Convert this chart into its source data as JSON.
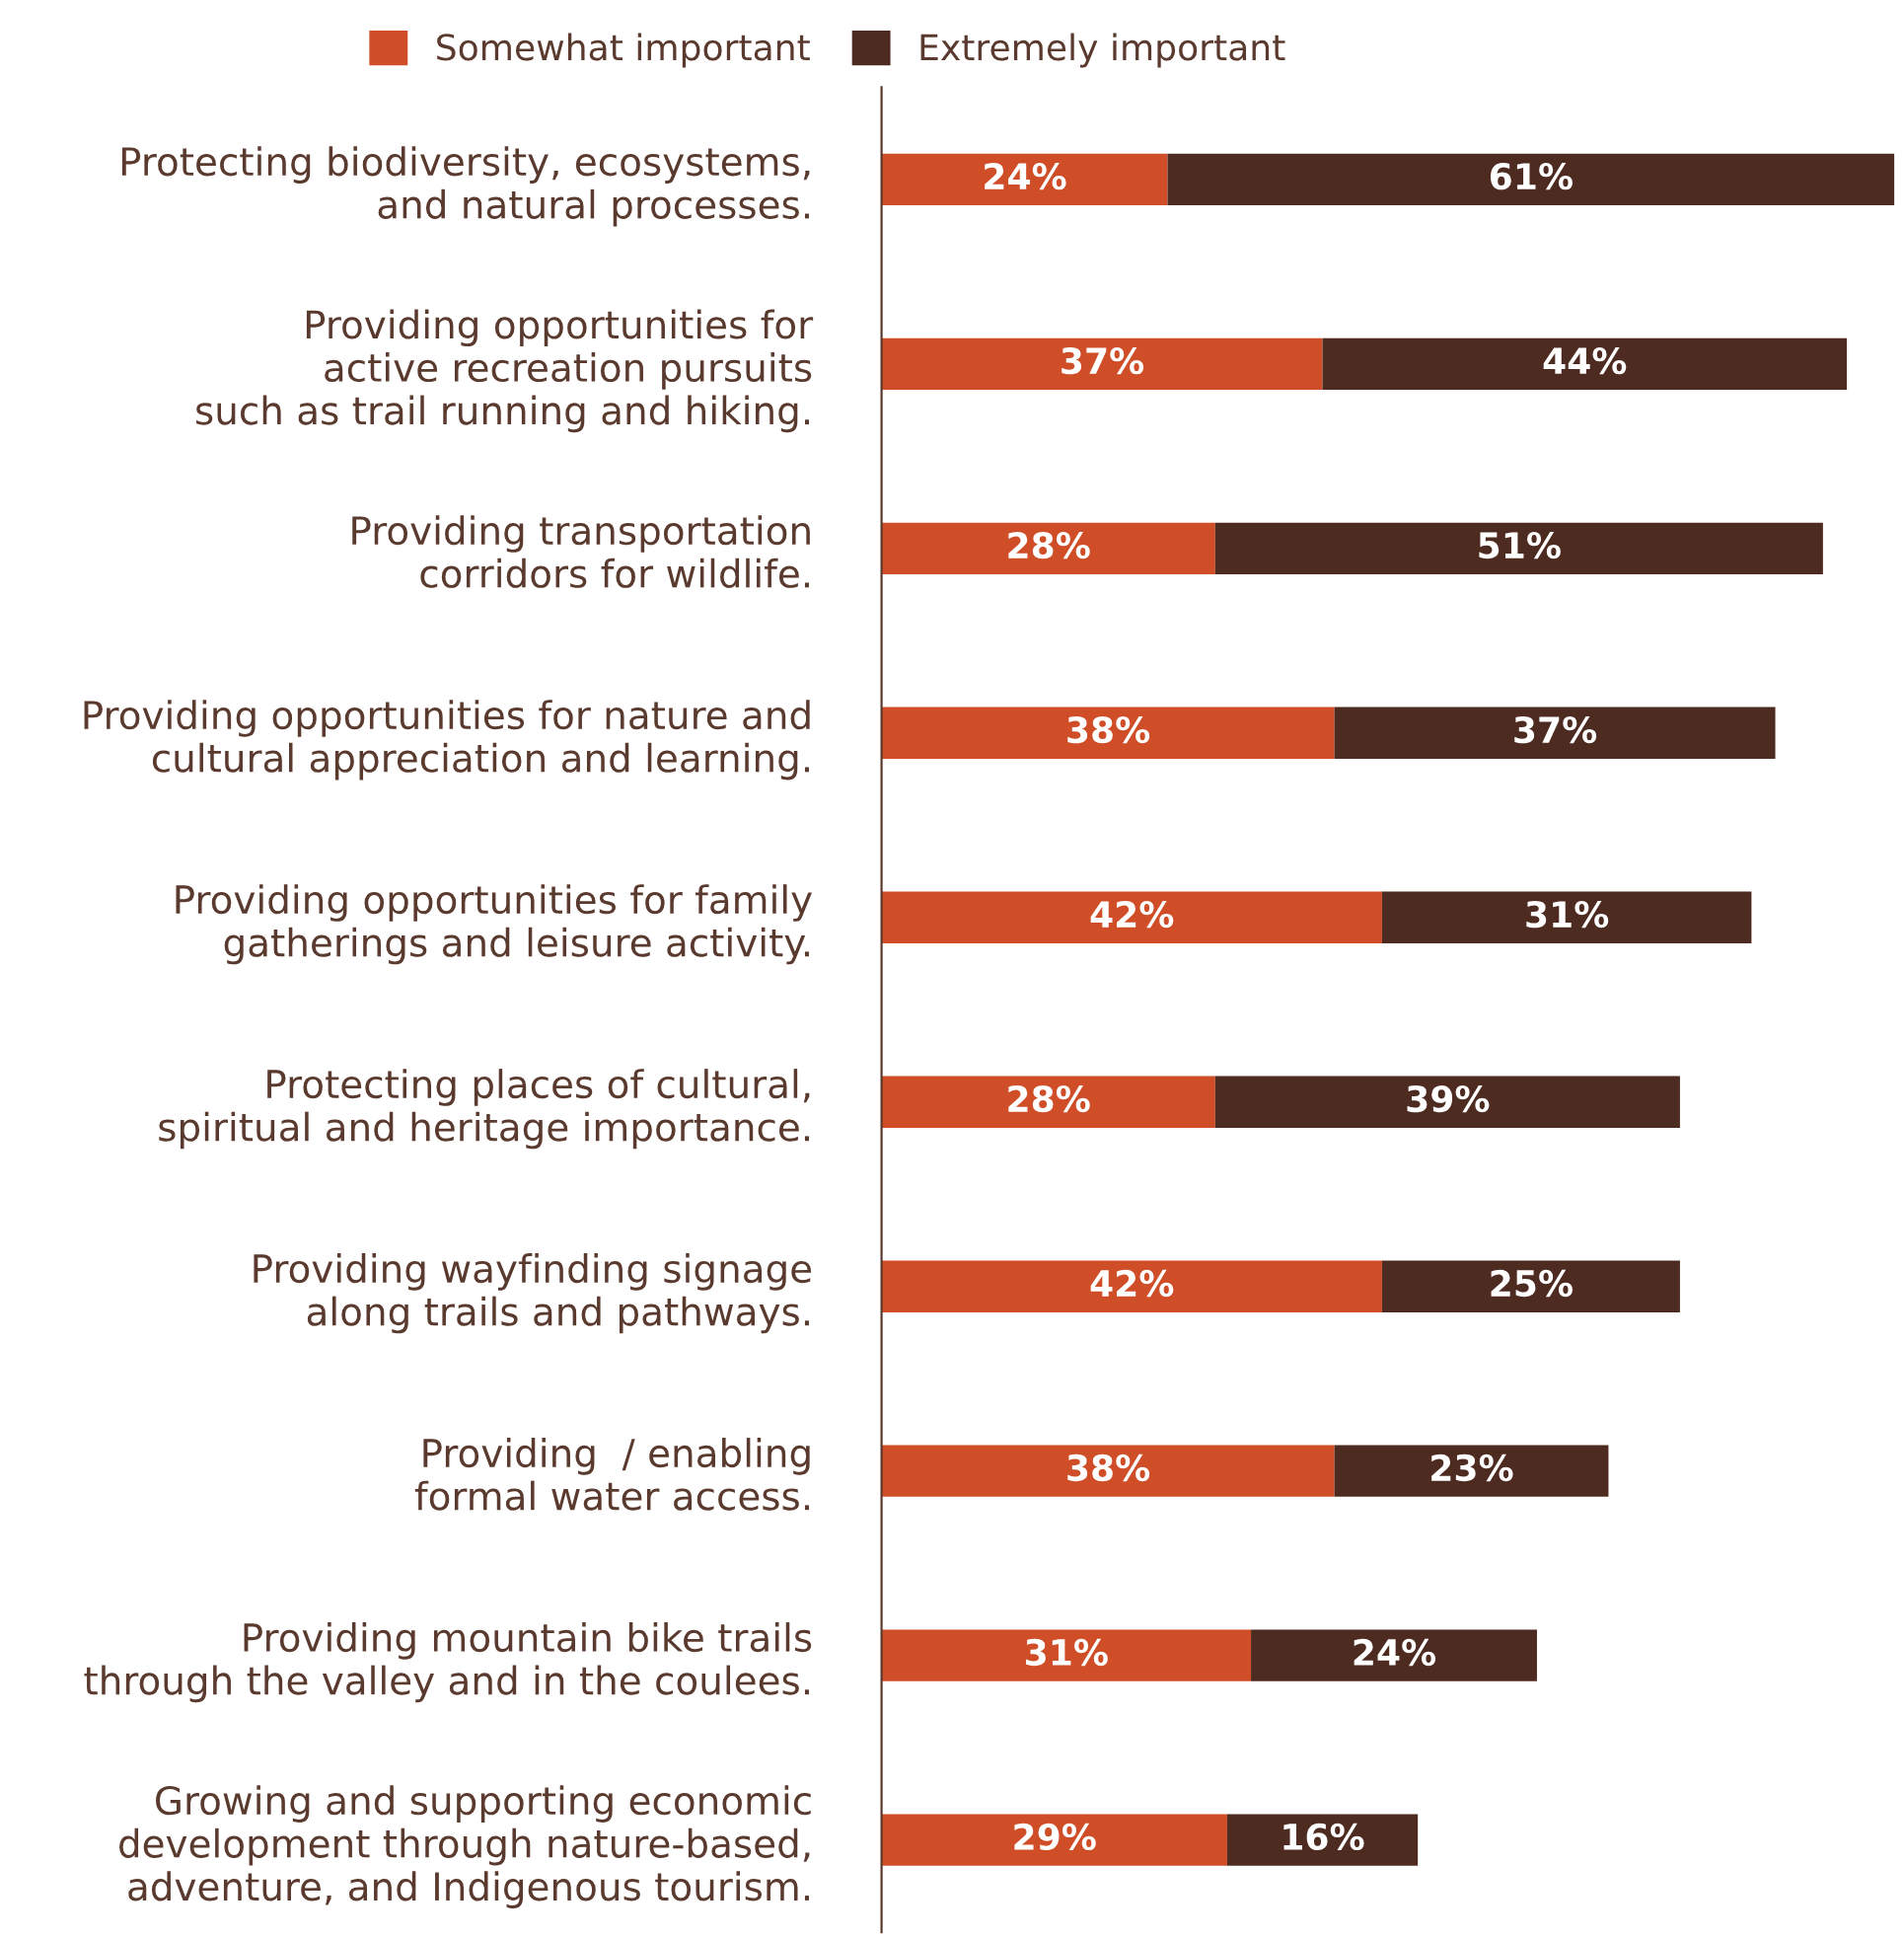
{
  "chart_data": {
    "type": "bar",
    "orientation": "horizontal",
    "stacked": true,
    "legend": "top",
    "tick_labels": "y",
    "grid": false,
    "categories": [
      "Protecting biodiversity, ecosystems,\nand natural processes.",
      "Providing opportunities for\nactive recreation pursuits\nsuch as trail running and hiking.",
      "Providing transportation\ncorridors for wildlife.",
      "Providing opportunities for nature and\ncultural appreciation and learning.",
      "Providing opportunities for family\ngatherings and leisure activity.",
      "Protecting places of cultural,\nspiritual and heritage importance.",
      "Providing wayfinding signage\nalong trails and pathways.",
      "Providing  / enabling\nformal water access.",
      "Providing mountain bike trails\nthrough the valley and in the coulees.",
      "Growing and supporting economic\ndevelopment through nature-based,\nadventure, and Indigenous tourism."
    ],
    "series": [
      {
        "name": "Somewhat important",
        "color": "#d04e27",
        "values": [
          24,
          37,
          28,
          38,
          42,
          28,
          42,
          38,
          31,
          29
        ],
        "value_labels": [
          "24%",
          "37%",
          "28%",
          "38%",
          "42%",
          "28%",
          "42%",
          "38%",
          "31%",
          "29%"
        ]
      },
      {
        "name": "Extremely important",
        "color": "#4e2b20",
        "values": [
          61,
          44,
          51,
          37,
          31,
          39,
          25,
          23,
          24,
          16
        ],
        "value_labels": [
          "61%",
          "44%",
          "51%",
          "37%",
          "31%",
          "39%",
          "25%",
          "23%",
          "24%",
          "16%"
        ]
      }
    ]
  }
}
